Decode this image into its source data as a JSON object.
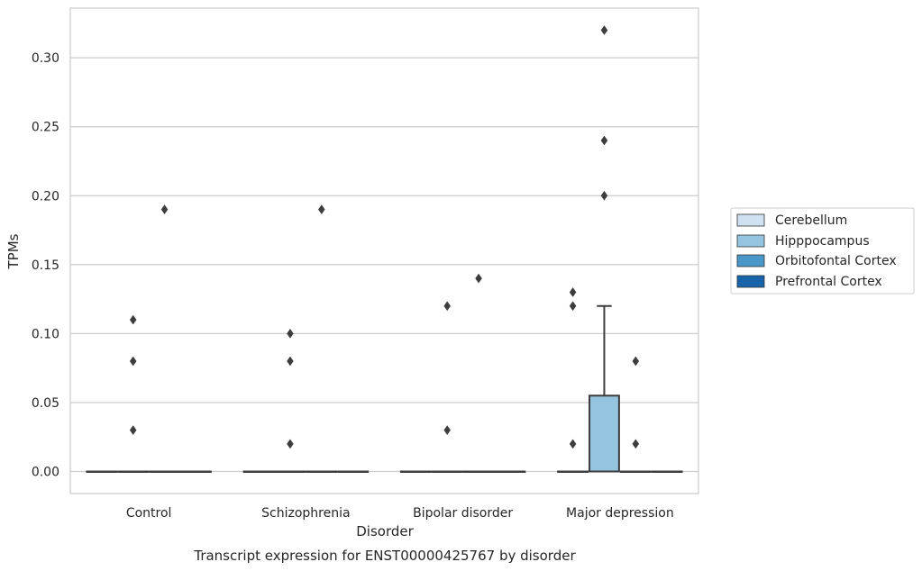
{
  "chart_data": {
    "type": "box",
    "title": "Transcript expression for ENST00000425767 by disorder",
    "xlabel": "Disorder",
    "ylabel": "TPMs",
    "ylim": [
      -0.016,
      0.336
    ],
    "yticks": [
      0.0,
      0.05,
      0.1,
      0.15,
      0.2,
      0.25,
      0.3
    ],
    "ytick_labels": [
      "0.00",
      "0.05",
      "0.10",
      "0.15",
      "0.20",
      "0.25",
      "0.30"
    ],
    "categories": [
      "Control",
      "Schizophrenia",
      "Bipolar disorder",
      "Major depression"
    ],
    "grid": "horizontal",
    "legend_position": "right",
    "hue_order": [
      "Cerebellum",
      "Hipppocampus",
      "Orbitofontal Cortex",
      "Prefrontal Cortex"
    ],
    "colors": [
      "#d0e1f2",
      "#94c4df",
      "#4a98c9",
      "#1764ab"
    ],
    "boxes": [
      {
        "category": "Control",
        "hue": "Cerebellum",
        "q1": 0.0,
        "median": 0.0,
        "q3": 0.0,
        "whisker_low": 0.0,
        "whisker_high": 0.0,
        "outliers": []
      },
      {
        "category": "Control",
        "hue": "Hipppocampus",
        "q1": 0.0,
        "median": 0.0,
        "q3": 0.0,
        "whisker_low": 0.0,
        "whisker_high": 0.0,
        "outliers": [
          0.03,
          0.08,
          0.11
        ]
      },
      {
        "category": "Control",
        "hue": "Orbitofontal Cortex",
        "q1": 0.0,
        "median": 0.0,
        "q3": 0.0,
        "whisker_low": 0.0,
        "whisker_high": 0.0,
        "outliers": [
          0.19
        ]
      },
      {
        "category": "Control",
        "hue": "Prefrontal Cortex",
        "q1": 0.0,
        "median": 0.0,
        "q3": 0.0,
        "whisker_low": 0.0,
        "whisker_high": 0.0,
        "outliers": []
      },
      {
        "category": "Schizophrenia",
        "hue": "Cerebellum",
        "q1": 0.0,
        "median": 0.0,
        "q3": 0.0,
        "whisker_low": 0.0,
        "whisker_high": 0.0,
        "outliers": []
      },
      {
        "category": "Schizophrenia",
        "hue": "Hipppocampus",
        "q1": 0.0,
        "median": 0.0,
        "q3": 0.0,
        "whisker_low": 0.0,
        "whisker_high": 0.0,
        "outliers": [
          0.02,
          0.08,
          0.1
        ]
      },
      {
        "category": "Schizophrenia",
        "hue": "Orbitofontal Cortex",
        "q1": 0.0,
        "median": 0.0,
        "q3": 0.0,
        "whisker_low": 0.0,
        "whisker_high": 0.0,
        "outliers": [
          0.19
        ]
      },
      {
        "category": "Schizophrenia",
        "hue": "Prefrontal Cortex",
        "q1": 0.0,
        "median": 0.0,
        "q3": 0.0,
        "whisker_low": 0.0,
        "whisker_high": 0.0,
        "outliers": []
      },
      {
        "category": "Bipolar disorder",
        "hue": "Cerebellum",
        "q1": 0.0,
        "median": 0.0,
        "q3": 0.0,
        "whisker_low": 0.0,
        "whisker_high": 0.0,
        "outliers": []
      },
      {
        "category": "Bipolar disorder",
        "hue": "Hipppocampus",
        "q1": 0.0,
        "median": 0.0,
        "q3": 0.0,
        "whisker_low": 0.0,
        "whisker_high": 0.0,
        "outliers": [
          0.03,
          0.12
        ]
      },
      {
        "category": "Bipolar disorder",
        "hue": "Orbitofontal Cortex",
        "q1": 0.0,
        "median": 0.0,
        "q3": 0.0,
        "whisker_low": 0.0,
        "whisker_high": 0.0,
        "outliers": [
          0.14
        ]
      },
      {
        "category": "Bipolar disorder",
        "hue": "Prefrontal Cortex",
        "q1": 0.0,
        "median": 0.0,
        "q3": 0.0,
        "whisker_low": 0.0,
        "whisker_high": 0.0,
        "outliers": []
      },
      {
        "category": "Major depression",
        "hue": "Cerebellum",
        "q1": 0.0,
        "median": 0.0,
        "q3": 0.0,
        "whisker_low": 0.0,
        "whisker_high": 0.0,
        "outliers": [
          0.02,
          0.12,
          0.13
        ]
      },
      {
        "category": "Major depression",
        "hue": "Hipppocampus",
        "q1": 0.0,
        "median": 0.0,
        "q3": 0.055,
        "whisker_low": 0.0,
        "whisker_high": 0.12,
        "outliers": [
          0.2,
          0.24,
          0.32
        ]
      },
      {
        "category": "Major depression",
        "hue": "Orbitofontal Cortex",
        "q1": 0.0,
        "median": 0.0,
        "q3": 0.0,
        "whisker_low": 0.0,
        "whisker_high": 0.0,
        "outliers": [
          0.02,
          0.08
        ]
      },
      {
        "category": "Major depression",
        "hue": "Prefrontal Cortex",
        "q1": 0.0,
        "median": 0.0,
        "q3": 0.0,
        "whisker_low": 0.0,
        "whisker_high": 0.0,
        "outliers": []
      }
    ]
  }
}
